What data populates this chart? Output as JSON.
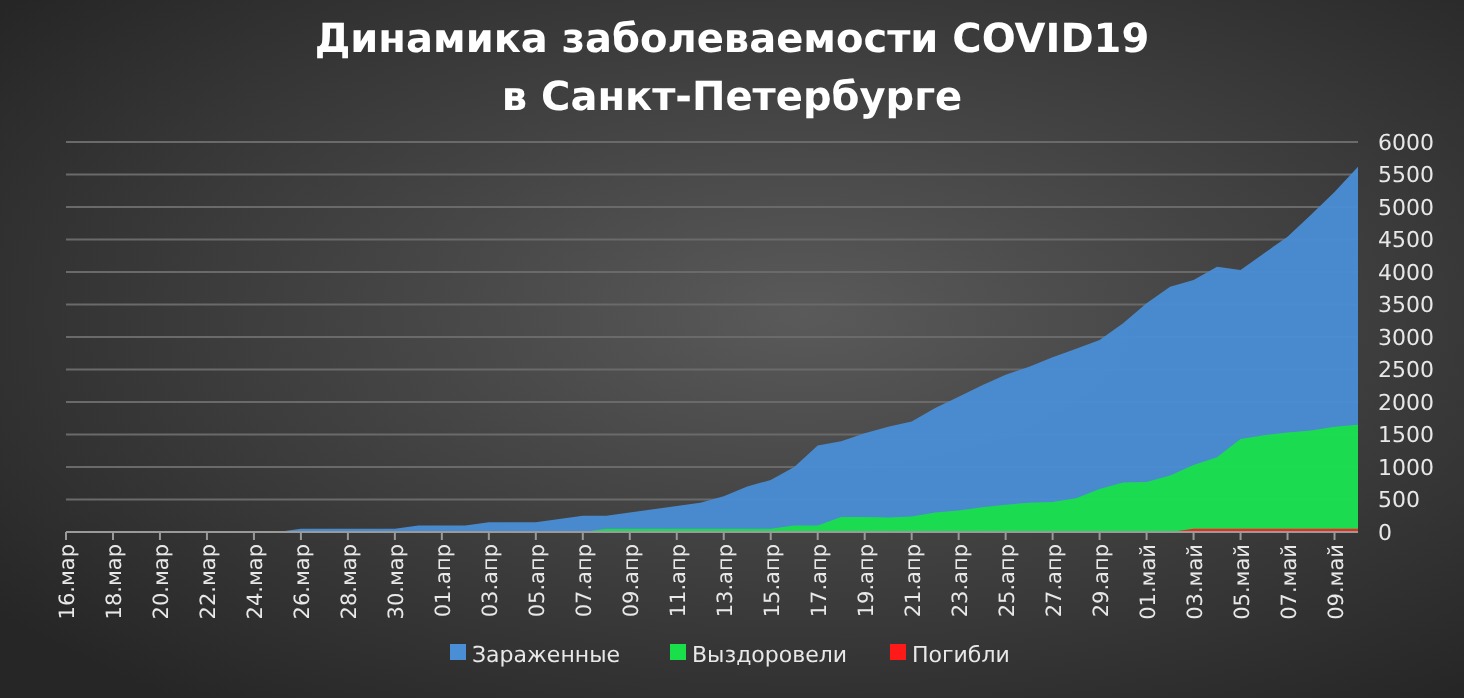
{
  "chart_data": {
    "type": "area",
    "title": "Динамика заболеваемости COVID19\nв Санкт-Петербурге",
    "categories": [
      "16.мар",
      null,
      "18.мар",
      null,
      "20.мар",
      null,
      "22.мар",
      null,
      "24.мар",
      null,
      "26.мар",
      null,
      "28.мар",
      null,
      "30.мар",
      null,
      "01.апр",
      null,
      "03.апр",
      null,
      "05.апр",
      null,
      "07.апр",
      null,
      "09.апр",
      null,
      "11.апр",
      null,
      "13.апр",
      null,
      "15.апр",
      null,
      "17.апр",
      null,
      "19.апр",
      null,
      "21.апр",
      null,
      "23.апр",
      null,
      "25.апр",
      null,
      "27.апр",
      null,
      "29.апр",
      null,
      "01.май",
      null,
      "03.май",
      null,
      "05.май",
      null,
      "07.май",
      null,
      "09.май",
      null
    ],
    "series": [
      {
        "name": "Зараженные",
        "color": "#4a8ed6",
        "values": [
          0,
          0,
          0,
          0,
          0,
          0,
          0,
          0,
          0,
          0,
          50,
          50,
          50,
          50,
          50,
          100,
          100,
          100,
          150,
          150,
          150,
          200,
          250,
          250,
          300,
          350,
          400,
          450,
          550,
          700,
          800,
          1000,
          1330,
          1395,
          1518,
          1620,
          1700,
          1908,
          2080,
          2256,
          2420,
          2544,
          2687,
          2820,
          2954,
          3210,
          3518,
          3774,
          3877,
          4082,
          4030,
          4287,
          4544,
          4882,
          5231,
          5620
        ]
      },
      {
        "name": "Выздоровели",
        "color": "#19e04a",
        "values": [
          0,
          0,
          0,
          0,
          0,
          0,
          0,
          0,
          0,
          0,
          0,
          0,
          0,
          0,
          0,
          0,
          0,
          0,
          0,
          0,
          0,
          0,
          0,
          50,
          50,
          50,
          50,
          50,
          50,
          50,
          50,
          100,
          100,
          230,
          230,
          225,
          240,
          300,
          330,
          380,
          420,
          450,
          460,
          520,
          660,
          760,
          770,
          870,
          1030,
          1150,
          1430,
          1490,
          1530,
          1560,
          1620,
          1650
        ]
      },
      {
        "name": "Погибли",
        "color": "#ff1a1a",
        "values": [
          0,
          0,
          0,
          0,
          0,
          0,
          0,
          0,
          0,
          0,
          0,
          0,
          0,
          0,
          0,
          0,
          0,
          0,
          0,
          0,
          0,
          0,
          0,
          0,
          0,
          0,
          0,
          0,
          0,
          0,
          0,
          0,
          0,
          0,
          0,
          0,
          0,
          0,
          0,
          0,
          0,
          0,
          0,
          0,
          0,
          0,
          0,
          0,
          50,
          50,
          50,
          50,
          50,
          50,
          50,
          50
        ]
      }
    ],
    "ylim": [
      0,
      6000
    ],
    "yticks": [
      0,
      500,
      1000,
      1500,
      2000,
      2500,
      3000,
      3500,
      4000,
      4500,
      5000,
      5500,
      6000
    ],
    "grid": "y",
    "legend": "bottom"
  }
}
